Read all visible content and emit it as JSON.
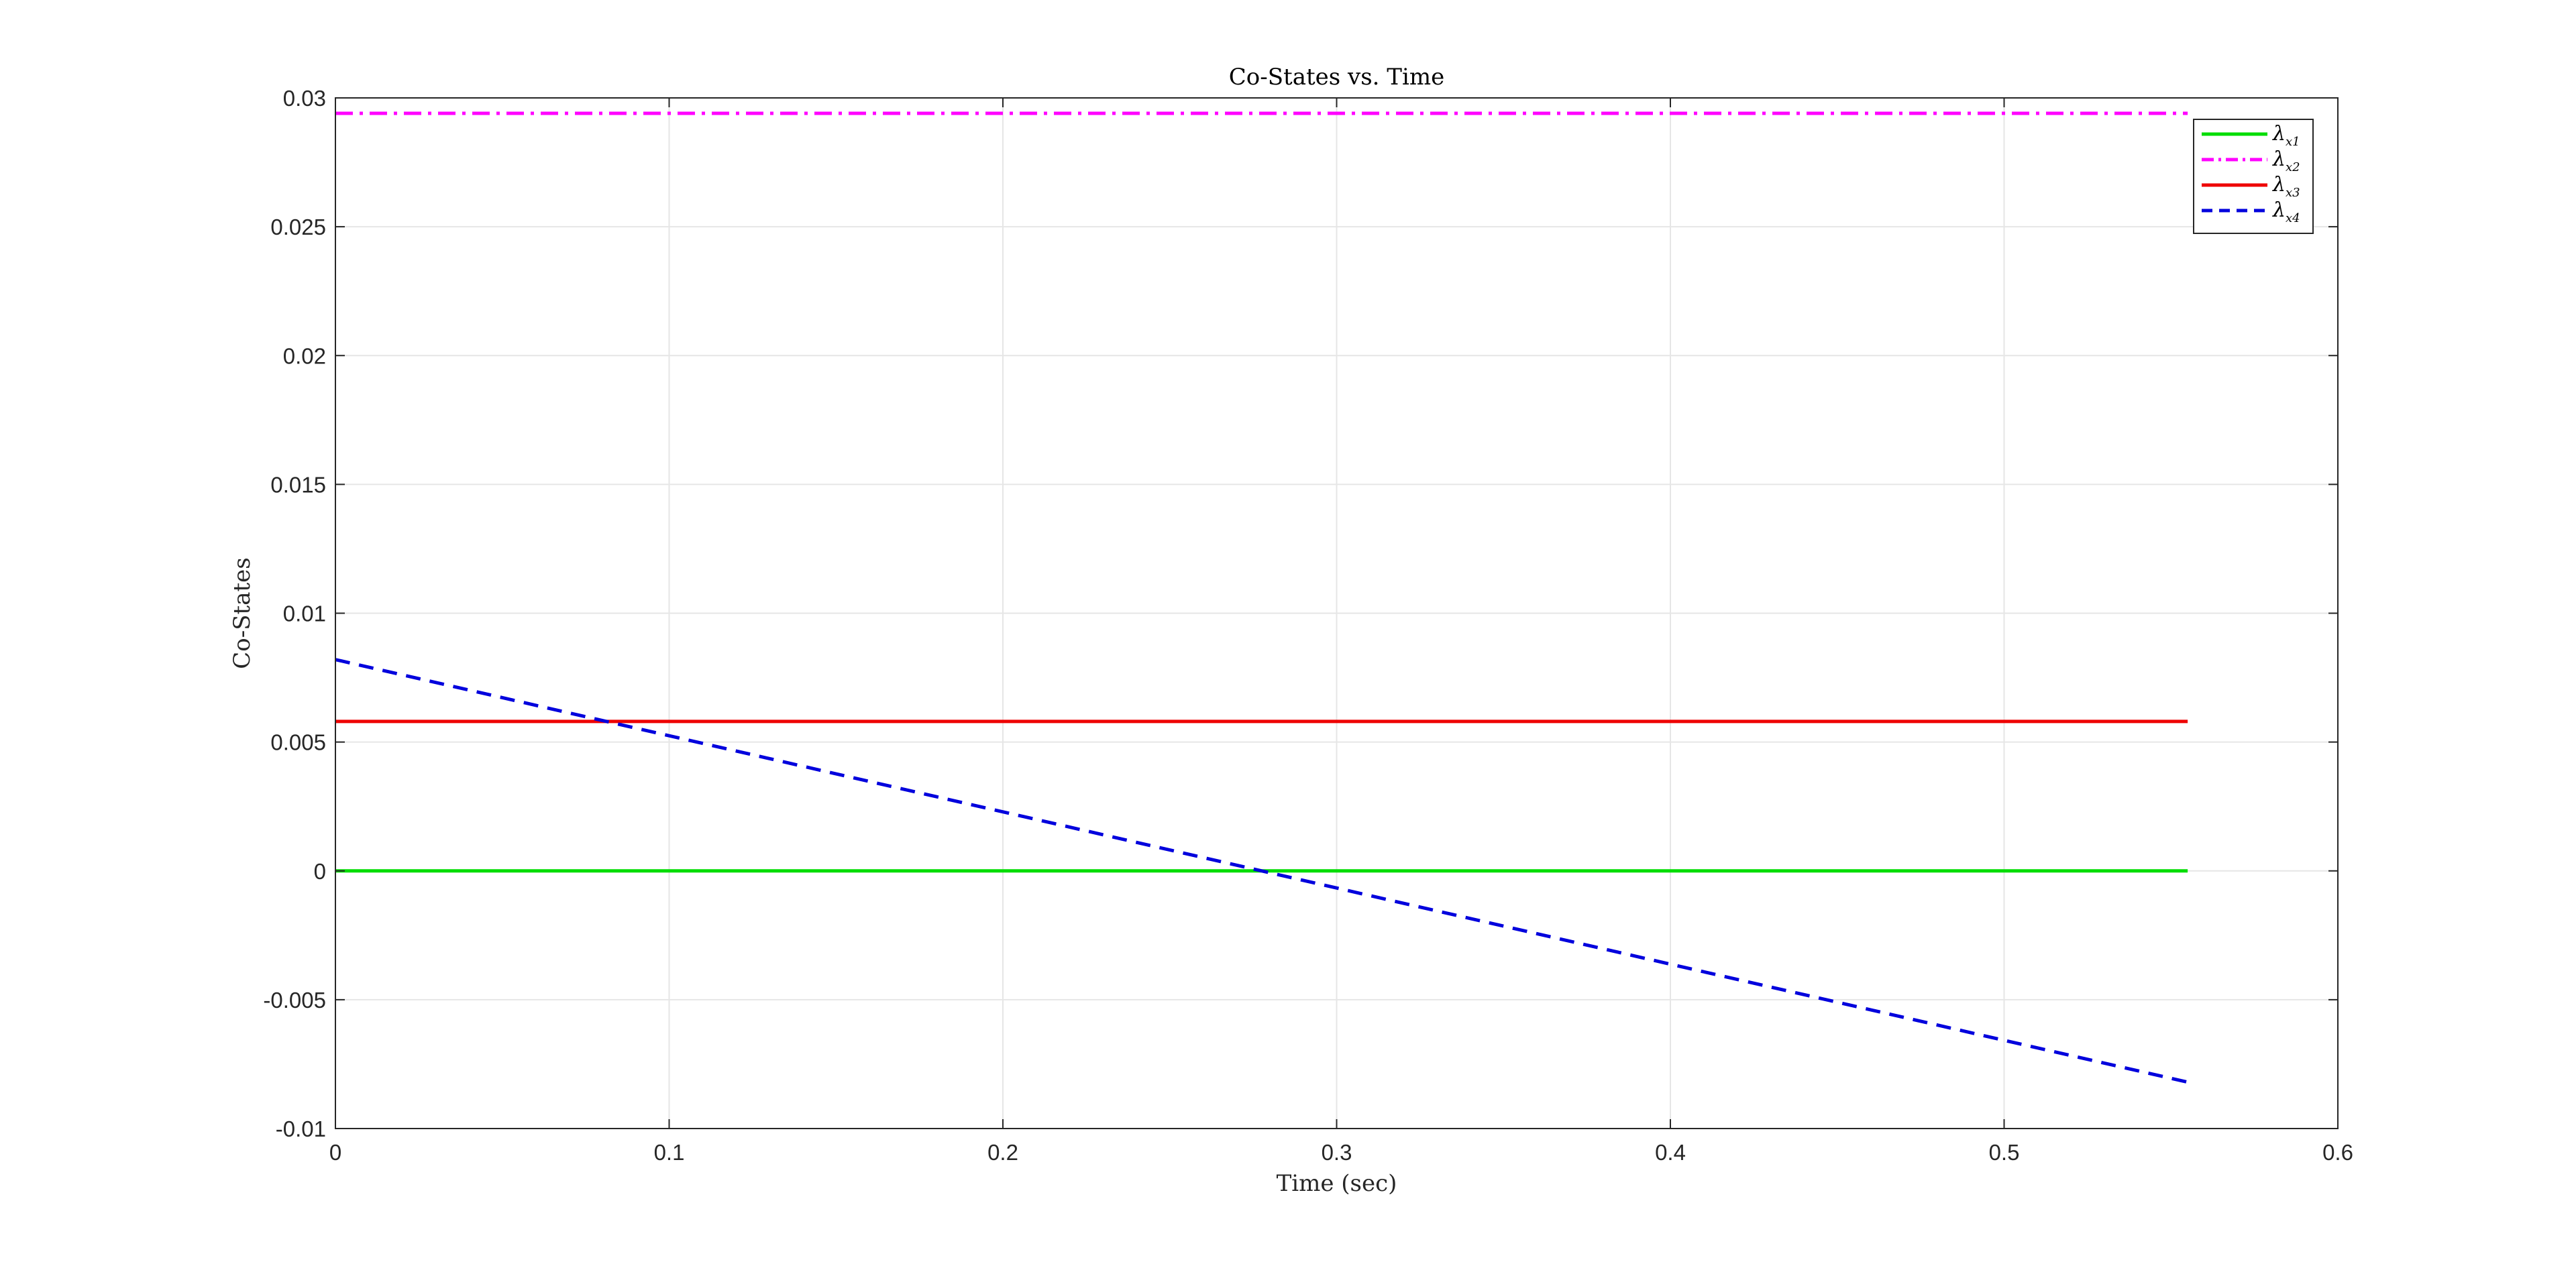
{
  "chart_data": {
    "type": "line",
    "title": "Co-States vs. Time",
    "xlabel": "Time (sec)",
    "ylabel": "Co-States",
    "xlim": [
      0,
      0.6
    ],
    "ylim": [
      -0.01,
      0.03
    ],
    "xticks": [
      0,
      0.1,
      0.2,
      0.3,
      0.4,
      0.5,
      0.6
    ],
    "xtick_labels": [
      "0",
      "0.1",
      "0.2",
      "0.3",
      "0.4",
      "0.5",
      "0.6"
    ],
    "yticks": [
      -0.01,
      -0.005,
      0,
      0.005,
      0.01,
      0.015,
      0.02,
      0.025,
      0.03
    ],
    "ytick_labels": [
      "-0.01",
      "-0.005",
      "0",
      "0.005",
      "0.01",
      "0.015",
      "0.02",
      "0.025",
      "0.03"
    ],
    "grid": true,
    "legend_position": "top-right",
    "series": [
      {
        "name": "λ",
        "name_sub": "x1",
        "color": "#00dd00",
        "style": "solid",
        "x": [
          0,
          0.555
        ],
        "values": [
          0,
          0
        ]
      },
      {
        "name": "λ",
        "name_sub": "x2",
        "color": "#ff00ff",
        "style": "dashdot",
        "x": [
          0,
          0.555
        ],
        "values": [
          0.0294,
          0.0294
        ]
      },
      {
        "name": "λ",
        "name_sub": "x3",
        "color": "#ee0000",
        "style": "solid",
        "x": [
          0,
          0.555
        ],
        "values": [
          0.0058,
          0.0058
        ]
      },
      {
        "name": "λ",
        "name_sub": "x4",
        "color": "#0000dd",
        "style": "dashed",
        "x": [
          0,
          0.555
        ],
        "values": [
          0.0082,
          -0.0082
        ]
      }
    ]
  }
}
